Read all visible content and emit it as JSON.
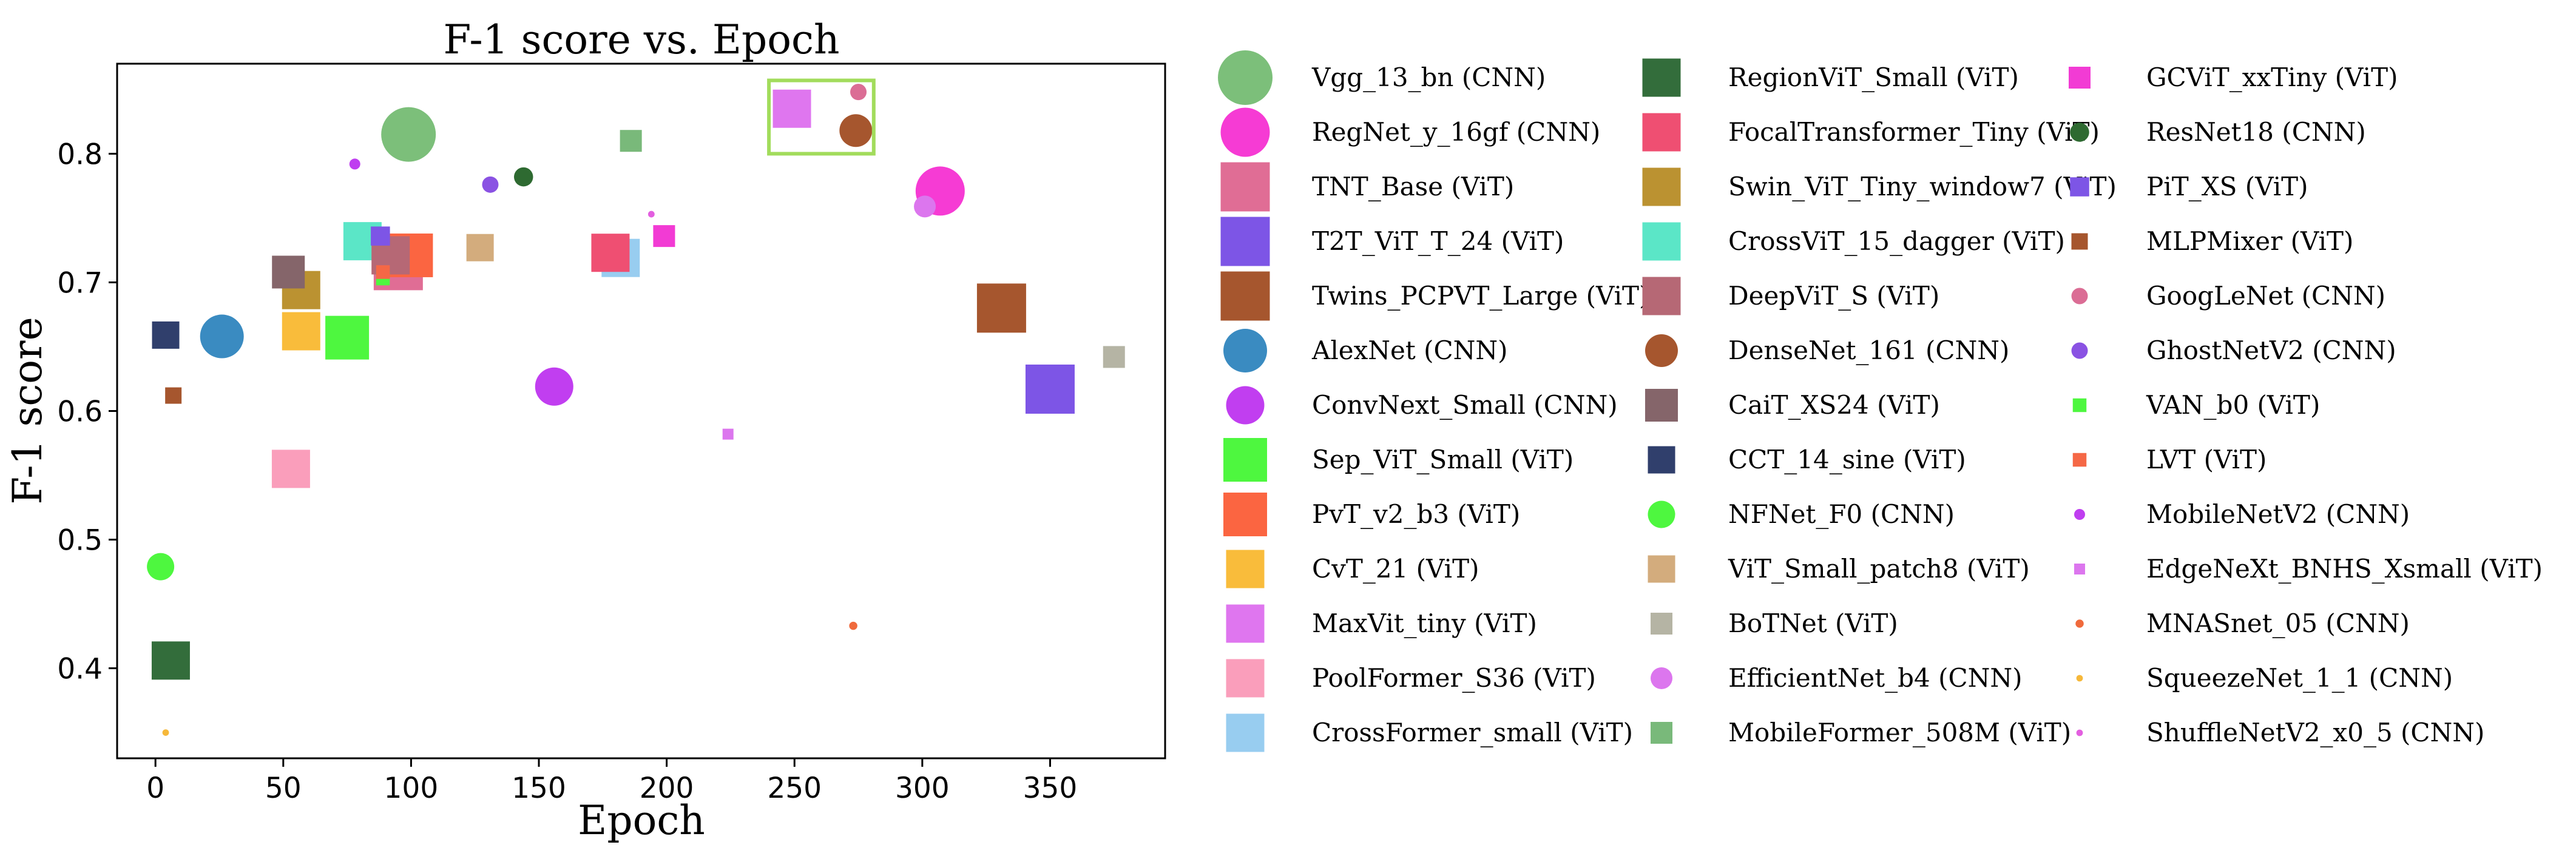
{
  "chart_data": {
    "type": "scatter",
    "title": "F-1 score vs. Epoch",
    "xlabel": "Epoch",
    "ylabel": "F-1 score",
    "xlim": [
      -15,
      395
    ],
    "ylim": [
      0.33,
      0.87
    ],
    "xticks": [
      0,
      50,
      100,
      150,
      200,
      250,
      300,
      350
    ],
    "yticks": [
      0.4,
      0.5,
      0.6,
      0.7,
      0.8
    ],
    "xtick_labels": [
      "0",
      "50",
      "100",
      "150",
      "200",
      "250",
      "300",
      "350"
    ],
    "ytick_labels": [
      "0.4",
      "0.5",
      "0.6",
      "0.7",
      "0.8"
    ],
    "grid": false,
    "highlight_box": {
      "x_range": [
        240,
        281
      ],
      "y_range": [
        0.8,
        0.857
      ],
      "color": "#a2dc5c"
    },
    "series": [
      {
        "name": "Vgg_13_bn (CNN)",
        "marker": "circle",
        "color": "#7cbf7a",
        "size": 10,
        "x": 99,
        "y": 0.815
      },
      {
        "name": "RegNet_y_16gf (CNN)",
        "marker": "circle",
        "color": "#f63bd4",
        "size": 9,
        "x": 307,
        "y": 0.771
      },
      {
        "name": "TNT_Base (ViT)",
        "marker": "square",
        "color": "#e06d95",
        "size": 9,
        "x": 95,
        "y": 0.713
      },
      {
        "name": "T2T_ViT_T_24 (ViT)",
        "marker": "square",
        "color": "#7d55e6",
        "size": 9,
        "x": 350,
        "y": 0.617
      },
      {
        "name": "Twins_PCPVT_Large (ViT)",
        "marker": "square",
        "color": "#a6562e",
        "size": 9,
        "x": 331,
        "y": 0.68
      },
      {
        "name": "AlexNet (CNN)",
        "marker": "circle",
        "color": "#3a8bc1",
        "size": 8,
        "x": 26,
        "y": 0.658
      },
      {
        "name": "ConvNext_Small (CNN)",
        "marker": "circle",
        "color": "#c13ef0",
        "size": 7,
        "x": 156,
        "y": 0.619
      },
      {
        "name": "Sep_ViT_Small (ViT)",
        "marker": "square",
        "color": "#4ef73f",
        "size": 8,
        "x": 75,
        "y": 0.657
      },
      {
        "name": "PvT_v2_b3 (ViT)",
        "marker": "square",
        "color": "#fb6541",
        "size": 8,
        "x": 100,
        "y": 0.721
      },
      {
        "name": "CvT_21 (ViT)",
        "marker": "square",
        "color": "#f9bc3b",
        "size": 7,
        "x": 57,
        "y": 0.662
      },
      {
        "name": "MaxVit_tiny (ViT)",
        "marker": "square",
        "color": "#df76ef",
        "size": 7,
        "x": 249,
        "y": 0.835
      },
      {
        "name": "PoolFormer_S36 (ViT)",
        "marker": "square",
        "color": "#fa9ebb",
        "size": 7,
        "x": 53,
        "y": 0.555
      },
      {
        "name": "CrossFormer_small (ViT)",
        "marker": "square",
        "color": "#98cdf0",
        "size": 7,
        "x": 182,
        "y": 0.719
      },
      {
        "name": "RegionViT_Small (ViT)",
        "marker": "square",
        "color": "#336d3b",
        "size": 7,
        "x": 6,
        "y": 0.406
      },
      {
        "name": "FocalTransformer_Tiny (ViT)",
        "marker": "square",
        "color": "#ef4f72",
        "size": 7,
        "x": 178,
        "y": 0.723
      },
      {
        "name": "Swin_ViT_Tiny_window7 (ViT)",
        "marker": "square",
        "color": "#bb9231",
        "size": 7,
        "x": 57,
        "y": 0.694
      },
      {
        "name": "CrossViT_15_dagger (ViT)",
        "marker": "square",
        "color": "#5be6c7",
        "size": 7,
        "x": 81,
        "y": 0.732
      },
      {
        "name": "DeepViT_S (ViT)",
        "marker": "square",
        "color": "#b66875",
        "size": 7,
        "x": 92,
        "y": 0.721
      },
      {
        "name": "DenseNet_161 (CNN)",
        "marker": "circle",
        "color": "#a6562e",
        "size": 6,
        "x": 274,
        "y": 0.818
      },
      {
        "name": "CaiT_XS24 (ViT)",
        "marker": "square",
        "color": "#85656a",
        "size": 6,
        "x": 52,
        "y": 0.708
      },
      {
        "name": "CCT_14_sine (ViT)",
        "marker": "square",
        "color": "#303f6c",
        "size": 5,
        "x": 4,
        "y": 0.659
      },
      {
        "name": "NFNet_F0 (CNN)",
        "marker": "circle",
        "color": "#4ef73f",
        "size": 5,
        "x": 2,
        "y": 0.479
      },
      {
        "name": "ViT_Small_patch8 (ViT)",
        "marker": "square",
        "color": "#d3ac7d",
        "size": 5,
        "x": 127,
        "y": 0.727
      },
      {
        "name": "BoTNet (ViT)",
        "marker": "square",
        "color": "#b5b4a4",
        "size": 4,
        "x": 375,
        "y": 0.642
      },
      {
        "name": "EfficientNet_b4 (CNN)",
        "marker": "circle",
        "color": "#dc76ee",
        "size": 4,
        "x": 301,
        "y": 0.759
      },
      {
        "name": "MobileFormer_508M (ViT)",
        "marker": "square",
        "color": "#79b97a",
        "size": 4,
        "x": 186,
        "y": 0.81
      },
      {
        "name": "GCViT_xxTiny (ViT)",
        "marker": "square",
        "color": "#f23bd4",
        "size": 4,
        "x": 199,
        "y": 0.736
      },
      {
        "name": "ResNet18 (CNN)",
        "marker": "circle",
        "color": "#2e6a31",
        "size": 3.5,
        "x": 144,
        "y": 0.782
      },
      {
        "name": "PiT_XS (ViT)",
        "marker": "square",
        "color": "#7d55e6",
        "size": 3.5,
        "x": 88,
        "y": 0.736
      },
      {
        "name": "MLPMixer (ViT)",
        "marker": "square",
        "color": "#a6562e",
        "size": 3,
        "x": 7,
        "y": 0.612
      },
      {
        "name": "GoogLeNet (CNN)",
        "marker": "circle",
        "color": "#db6d95",
        "size": 3,
        "x": 275,
        "y": 0.848
      },
      {
        "name": "GhostNetV2 (CNN)",
        "marker": "circle",
        "color": "#8a52e3",
        "size": 3,
        "x": 131,
        "y": 0.776
      },
      {
        "name": "VAN_b0 (ViT)",
        "marker": "square",
        "color": "#4ef73f",
        "size": 2.5,
        "x": 89,
        "y": 0.703
      },
      {
        "name": "LVT (ViT)",
        "marker": "square",
        "color": "#f56846",
        "size": 2.5,
        "x": 89,
        "y": 0.708
      },
      {
        "name": "MobileNetV2 (CNN)",
        "marker": "circle",
        "color": "#bf3ef0",
        "size": 2,
        "x": 78,
        "y": 0.792
      },
      {
        "name": "EdgeNeXt_BNHS_Xsmall (ViT)",
        "marker": "square",
        "color": "#dc76ee",
        "size": 2,
        "x": 224,
        "y": 0.582
      },
      {
        "name": "MNASnet_05 (CNN)",
        "marker": "circle",
        "color": "#f06a3c",
        "size": 1.5,
        "x": 273,
        "y": 0.433
      },
      {
        "name": "SqueezeNet_1_1 (CNN)",
        "marker": "circle",
        "color": "#f6b83a",
        "size": 1.2,
        "x": 4,
        "y": 0.35
      },
      {
        "name": "ShuffleNetV2_x0_5 (CNN)",
        "marker": "circle",
        "color": "#e35fe0",
        "size": 1.2,
        "x": 194,
        "y": 0.753
      }
    ]
  }
}
